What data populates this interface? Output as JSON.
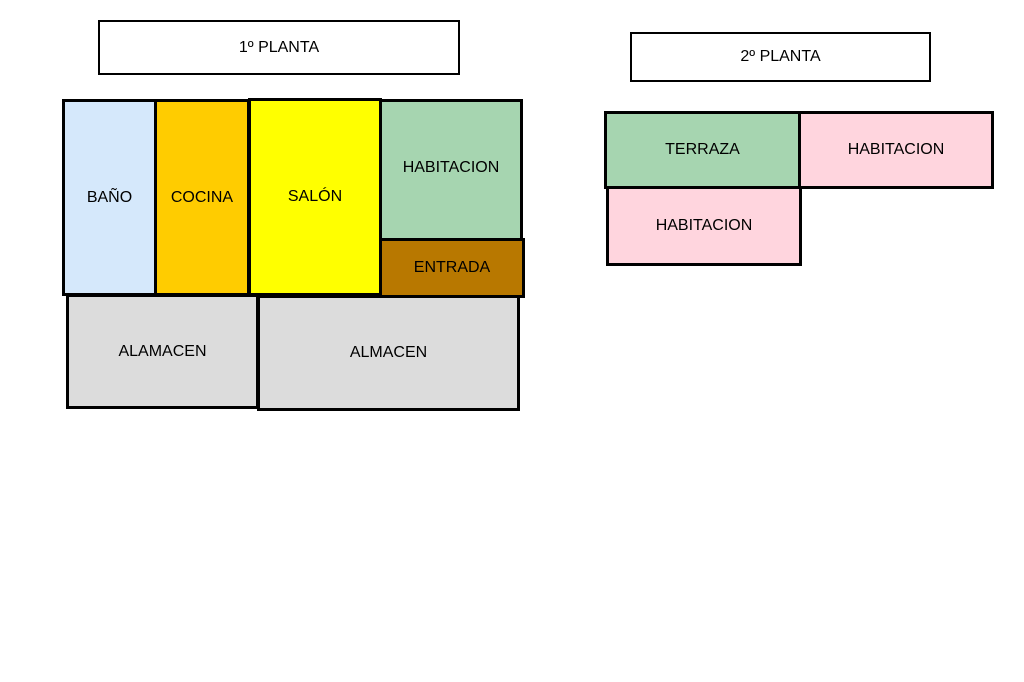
{
  "floor1": {
    "title": "1º PLANTA",
    "rooms": [
      {
        "label": "BAÑO",
        "color": "#d5e8fb"
      },
      {
        "label": "COCINA",
        "color": "#ffcc00"
      },
      {
        "label": "SALÓN",
        "color": "#ffff00"
      },
      {
        "label": "HABITACION",
        "color": "#a6d5b0"
      },
      {
        "label": "ENTRADA",
        "color": "#b87800"
      },
      {
        "label": "ALAMACEN",
        "color": "#dcdcdc"
      },
      {
        "label": "ALMACEN",
        "color": "#dcdcdc"
      }
    ]
  },
  "floor2": {
    "title": "2º PLANTA",
    "rooms": [
      {
        "label": "TERRAZA",
        "color": "#a6d5b0"
      },
      {
        "label": "HABITACION",
        "color": "#ffd5de"
      },
      {
        "label": "HABITACION",
        "color": "#ffd5de"
      }
    ]
  }
}
